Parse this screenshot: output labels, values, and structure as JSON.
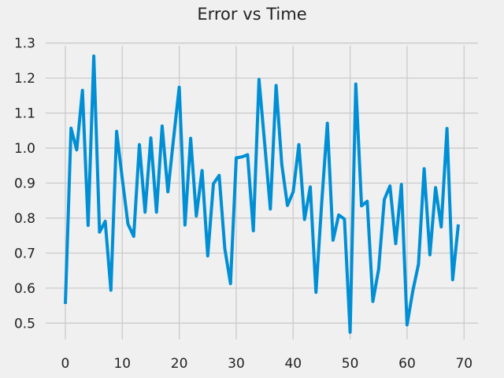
{
  "chart_data": {
    "type": "line",
    "title": "Error vs Time",
    "xlabel": "",
    "ylabel": "",
    "xlim": [
      -3.45,
      72.45
    ],
    "ylim": [
      0.4535,
      1.2925
    ],
    "xticks": [
      0,
      10,
      20,
      30,
      40,
      50,
      60,
      70
    ],
    "yticks": [
      0.5,
      0.6,
      0.7,
      0.8,
      0.9,
      1.0,
      1.1,
      1.2,
      1.3
    ],
    "ytick_labels": [
      "0.5",
      "0.6",
      "0.7",
      "0.8",
      "0.9",
      "1.0",
      "1.1",
      "1.2",
      "1.3"
    ],
    "grid": true,
    "series": [
      {
        "color": "#008fd5",
        "x": [
          0,
          1,
          2,
          3,
          4,
          5,
          6,
          7,
          8,
          9,
          10,
          11,
          12,
          13,
          14,
          15,
          16,
          17,
          18,
          19,
          20,
          21,
          22,
          23,
          24,
          25,
          26,
          27,
          28,
          29,
          30,
          31,
          32,
          33,
          34,
          35,
          36,
          37,
          38,
          39,
          40,
          41,
          42,
          43,
          44,
          45,
          46,
          47,
          48,
          49,
          50,
          51,
          52,
          53,
          54,
          55,
          56,
          57,
          58,
          59,
          60,
          61,
          62,
          63,
          64,
          65,
          66,
          67,
          68,
          69
        ],
        "values": [
          0.555,
          1.057,
          0.995,
          1.165,
          0.779,
          1.263,
          0.76,
          0.791,
          0.594,
          1.048,
          0.912,
          0.783,
          0.748,
          1.01,
          0.817,
          1.029,
          0.817,
          1.063,
          0.875,
          1.027,
          1.174,
          0.78,
          1.028,
          0.806,
          0.936,
          0.692,
          0.898,
          0.922,
          0.712,
          0.613,
          0.972,
          0.975,
          0.981,
          0.764,
          1.196,
          1.013,
          0.826,
          1.179,
          0.954,
          0.836,
          0.875,
          1.01,
          0.796,
          0.889,
          0.588,
          0.84,
          1.071,
          0.737,
          0.809,
          0.797,
          0.474,
          1.183,
          0.835,
          0.848,
          0.562,
          0.654,
          0.853,
          0.892,
          0.727,
          0.896,
          0.495,
          0.592,
          0.668,
          0.941,
          0.695,
          0.887,
          0.775,
          1.056,
          0.624,
          0.782
        ]
      }
    ]
  }
}
